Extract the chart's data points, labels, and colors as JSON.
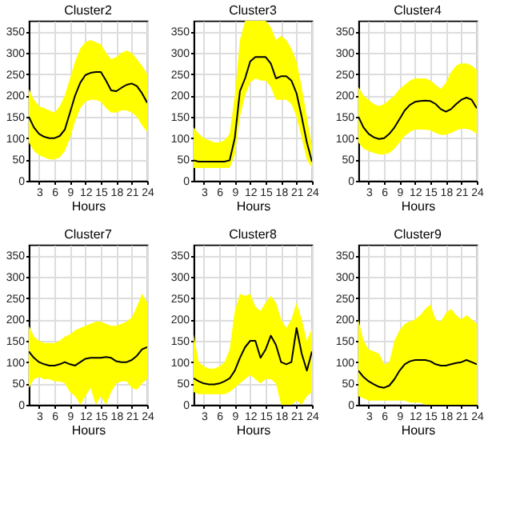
{
  "chart_data": [
    {
      "type": "line",
      "title": "Cluster2",
      "xlabel": "Hours",
      "x": [
        1,
        2,
        3,
        4,
        5,
        6,
        7,
        8,
        9,
        10,
        11,
        12,
        13,
        14,
        15,
        16,
        17,
        18,
        19,
        20,
        21,
        22,
        23,
        24
      ],
      "xlim": [
        1,
        24
      ],
      "xticks": [
        3,
        6,
        9,
        12,
        15,
        18,
        21,
        24
      ],
      "ylim": [
        0,
        375
      ],
      "yticks": [
        0,
        50,
        100,
        150,
        200,
        250,
        300,
        350
      ],
      "grid": true,
      "series": [
        {
          "color": "#000000",
          "values": [
            150,
            125,
            110,
            103,
            100,
            100,
            105,
            120,
            160,
            200,
            230,
            248,
            253,
            255,
            255,
            235,
            212,
            210,
            218,
            225,
            228,
            222,
            205,
            183
          ],
          "lower": [
            90,
            70,
            60,
            55,
            50,
            50,
            55,
            70,
            100,
            140,
            170,
            185,
            190,
            190,
            185,
            170,
            160,
            160,
            165,
            165,
            160,
            150,
            130,
            115
          ],
          "upper": [
            215,
            190,
            175,
            170,
            165,
            160,
            175,
            200,
            240,
            280,
            310,
            325,
            330,
            325,
            320,
            300,
            285,
            290,
            300,
            305,
            300,
            285,
            270,
            250
          ]
        }
      ]
    },
    {
      "type": "line",
      "title": "Cluster3",
      "xlabel": "Hours",
      "x": [
        1,
        2,
        3,
        4,
        5,
        6,
        7,
        8,
        9,
        10,
        11,
        12,
        13,
        14,
        15,
        16,
        17,
        18,
        19,
        20,
        21,
        22,
        23,
        24
      ],
      "xlim": [
        1,
        24
      ],
      "xticks": [
        3,
        6,
        9,
        12,
        15,
        18,
        21,
        24
      ],
      "ylim": [
        0,
        375
      ],
      "yticks": [
        0,
        50,
        100,
        150,
        200,
        250,
        300,
        350
      ],
      "grid": true,
      "series": [
        {
          "color": "#000000",
          "values": [
            48,
            45,
            45,
            45,
            45,
            45,
            45,
            48,
            100,
            210,
            240,
            280,
            290,
            290,
            290,
            275,
            240,
            245,
            245,
            235,
            205,
            150,
            90,
            45
          ],
          "lower": [
            30,
            30,
            30,
            30,
            30,
            30,
            30,
            30,
            60,
            150,
            200,
            230,
            240,
            235,
            235,
            220,
            190,
            190,
            190,
            180,
            150,
            100,
            50,
            30
          ],
          "upper": [
            125,
            110,
            100,
            95,
            90,
            90,
            95,
            110,
            200,
            330,
            375,
            375,
            375,
            375,
            375,
            360,
            330,
            340,
            330,
            310,
            280,
            220,
            150,
            80
          ]
        }
      ]
    },
    {
      "type": "line",
      "title": "Cluster4",
      "xlabel": "Hours",
      "x": [
        1,
        2,
        3,
        4,
        5,
        6,
        7,
        8,
        9,
        10,
        11,
        12,
        13,
        14,
        15,
        16,
        17,
        18,
        19,
        20,
        21,
        22,
        23,
        24
      ],
      "xlim": [
        1,
        24
      ],
      "xticks": [
        3,
        6,
        9,
        12,
        15,
        18,
        21,
        24
      ],
      "ylim": [
        0,
        375
      ],
      "yticks": [
        0,
        50,
        100,
        150,
        200,
        250,
        300,
        350
      ],
      "grid": true,
      "series": [
        {
          "color": "#000000",
          "values": [
            150,
            125,
            110,
            102,
            98,
            100,
            110,
            125,
            145,
            165,
            178,
            185,
            187,
            188,
            187,
            180,
            168,
            162,
            168,
            180,
            190,
            195,
            190,
            170
          ],
          "lower": [
            90,
            75,
            70,
            65,
            62,
            62,
            65,
            75,
            90,
            105,
            115,
            120,
            120,
            120,
            118,
            112,
            108,
            108,
            112,
            118,
            122,
            122,
            118,
            110
          ],
          "upper": [
            220,
            200,
            190,
            180,
            175,
            180,
            190,
            200,
            215,
            225,
            235,
            240,
            240,
            240,
            235,
            225,
            215,
            230,
            255,
            270,
            275,
            275,
            270,
            260
          ]
        }
      ]
    },
    {
      "type": "line",
      "title": "Cluster7",
      "xlabel": "Hours",
      "x": [
        1,
        2,
        3,
        4,
        5,
        6,
        7,
        8,
        9,
        10,
        11,
        12,
        13,
        14,
        15,
        16,
        17,
        18,
        19,
        20,
        21,
        22,
        23,
        24
      ],
      "xlim": [
        1,
        24
      ],
      "xticks": [
        3,
        6,
        9,
        12,
        15,
        18,
        21,
        24
      ],
      "ylim": [
        0,
        375
      ],
      "yticks": [
        0,
        50,
        100,
        150,
        200,
        250,
        300,
        350
      ],
      "grid": true,
      "series": [
        {
          "color": "#000000",
          "values": [
            125,
            110,
            100,
            95,
            92,
            92,
            95,
            100,
            95,
            92,
            100,
            108,
            110,
            110,
            110,
            112,
            110,
            102,
            100,
            100,
            105,
            115,
            130,
            135
          ],
          "lower": [
            40,
            60,
            65,
            60,
            60,
            55,
            55,
            50,
            30,
            20,
            0,
            20,
            40,
            0,
            20,
            0,
            30,
            50,
            55,
            55,
            40,
            35,
            50,
            60
          ],
          "upper": [
            185,
            160,
            150,
            145,
            145,
            145,
            150,
            160,
            165,
            175,
            180,
            185,
            190,
            195,
            195,
            190,
            185,
            185,
            190,
            195,
            205,
            230,
            260,
            240
          ]
        }
      ]
    },
    {
      "type": "line",
      "title": "Cluster8",
      "xlabel": "Hours",
      "x": [
        1,
        2,
        3,
        4,
        5,
        6,
        7,
        8,
        9,
        10,
        11,
        12,
        13,
        14,
        15,
        16,
        17,
        18,
        19,
        20,
        21,
        22,
        23,
        24
      ],
      "xlim": [
        1,
        24
      ],
      "xticks": [
        3,
        6,
        9,
        12,
        15,
        18,
        21,
        24
      ],
      "ylim": [
        0,
        375
      ],
      "yticks": [
        0,
        50,
        100,
        150,
        200,
        250,
        300,
        350
      ],
      "grid": true,
      "series": [
        {
          "color": "#000000",
          "values": [
            62,
            55,
            50,
            48,
            48,
            50,
            55,
            62,
            80,
            110,
            135,
            150,
            150,
            110,
            130,
            162,
            140,
            100,
            95,
            100,
            180,
            120,
            80,
            125
          ],
          "lower": [
            30,
            25,
            25,
            25,
            25,
            25,
            25,
            30,
            40,
            50,
            60,
            70,
            60,
            50,
            60,
            60,
            50,
            0,
            0,
            0,
            10,
            0,
            20,
            30
          ],
          "upper": [
            165,
            100,
            90,
            85,
            85,
            90,
            100,
            130,
            220,
            260,
            255,
            260,
            230,
            220,
            240,
            255,
            240,
            200,
            180,
            200,
            240,
            200,
            150,
            180
          ]
        }
      ]
    },
    {
      "type": "line",
      "title": "Cluster9",
      "xlabel": "Hours",
      "x": [
        1,
        2,
        3,
        4,
        5,
        6,
        7,
        8,
        9,
        10,
        11,
        12,
        13,
        14,
        15,
        16,
        17,
        18,
        19,
        20,
        21,
        22,
        23,
        24
      ],
      "xlim": [
        1,
        24
      ],
      "xticks": [
        3,
        6,
        9,
        12,
        15,
        18,
        21,
        24
      ],
      "ylim": [
        0,
        375
      ],
      "yticks": [
        0,
        50,
        100,
        150,
        200,
        250,
        300,
        350
      ],
      "grid": true,
      "series": [
        {
          "color": "#000000",
          "values": [
            80,
            65,
            55,
            48,
            42,
            40,
            45,
            60,
            80,
            95,
            102,
            105,
            105,
            105,
            102,
            95,
            92,
            92,
            95,
            98,
            100,
            105,
            100,
            95
          ],
          "lower": [
            20,
            15,
            10,
            10,
            10,
            10,
            10,
            10,
            10,
            10,
            5,
            5,
            5,
            0,
            0,
            0,
            0,
            0,
            0,
            0,
            0,
            0,
            0,
            0
          ],
          "upper": [
            200,
            150,
            130,
            125,
            120,
            95,
            100,
            150,
            175,
            190,
            195,
            200,
            210,
            225,
            235,
            200,
            195,
            215,
            225,
            210,
            200,
            210,
            200,
            190
          ]
        }
      ]
    }
  ]
}
